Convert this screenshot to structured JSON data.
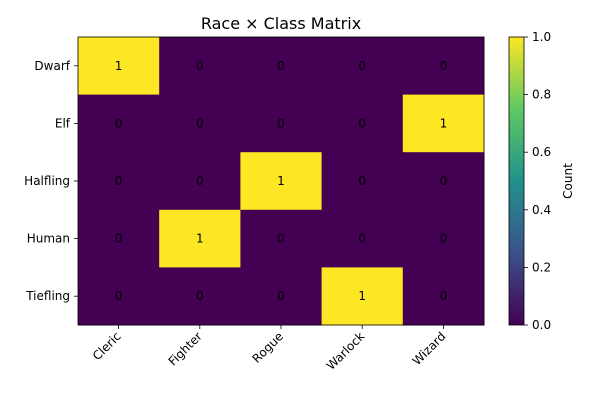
{
  "chart_data": {
    "type": "heatmap",
    "title": "Race × Class Matrix",
    "rows": [
      "Dwarf",
      "Elf",
      "Halfling",
      "Human",
      "Tiefling"
    ],
    "columns": [
      "Cleric",
      "Fighter",
      "Rogue",
      "Warlock",
      "Wizard"
    ],
    "values": [
      [
        1,
        0,
        0,
        0,
        0
      ],
      [
        0,
        0,
        0,
        0,
        1
      ],
      [
        0,
        0,
        1,
        0,
        0
      ],
      [
        0,
        1,
        0,
        0,
        0
      ],
      [
        0,
        0,
        0,
        1,
        0
      ]
    ],
    "colorbar": {
      "label": "Count",
      "range": [
        0,
        1
      ],
      "ticks": [
        "0.0",
        "0.2",
        "0.4",
        "0.6",
        "0.8",
        "1.0"
      ],
      "colormap": "viridis",
      "low_color": "#440154",
      "high_color": "#fde725"
    },
    "grid": false
  }
}
